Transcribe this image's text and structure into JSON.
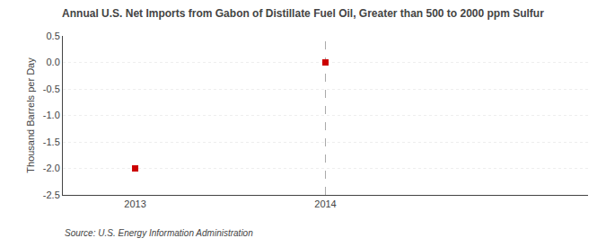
{
  "chart_data": {
    "type": "scatter",
    "title": "Annual U.S. Net Imports from Gabon of Distillate Fuel Oil, Greater than 500 to 2000 ppm Sulfur",
    "y_label": "Thousand Barrels per Day",
    "source": "Source: U.S. Energy Information Administration",
    "x": [
      2013,
      2014
    ],
    "values": [
      -2.0,
      0.0
    ],
    "color": "#cc0000",
    "marker": "square",
    "xlim": [
      2012.62,
      2015.38
    ],
    "ylim": [
      -2.5,
      0.5
    ],
    "xticks": [
      2013,
      2014
    ],
    "yticks": [
      0.5,
      {
        "value": 0.0,
        "label": "0.0"
      },
      -0.5,
      {
        "value": -1.0,
        "label": "-1.0"
      },
      -1.5,
      {
        "value": -2.0,
        "label": "-2.0"
      },
      -2.5
    ],
    "vlines": [
      {
        "x": 2014,
        "color": "#aaaaaa",
        "line_style": "dashed"
      }
    ],
    "grid": true
  }
}
